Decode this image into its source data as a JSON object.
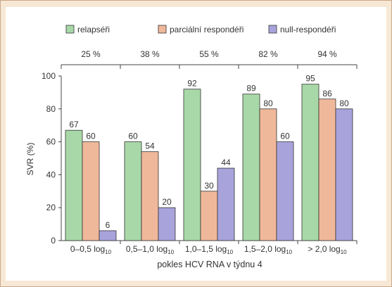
{
  "chart_data": {
    "type": "bar",
    "title": "",
    "xlabel_main": "pokles HCV RNA v týdnu 4",
    "ylabel": "SVR (%)",
    "ylim": [
      0,
      100
    ],
    "yticks": [
      0,
      20,
      40,
      60,
      80,
      100
    ],
    "grid": false,
    "legend_position": "top",
    "categories": [
      {
        "base": "0–0,5 log",
        "sub": "10"
      },
      {
        "base": "0,5–1,0 log",
        "sub": "10"
      },
      {
        "base": "1,0–1,5 log",
        "sub": "10"
      },
      {
        "base": "1,5–2,0 log",
        "sub": "10"
      },
      {
        "base": "> 2,0 log",
        "sub": "10"
      }
    ],
    "group_percentages": [
      "25 %",
      "38 %",
      "55 %",
      "82 %",
      "94 %"
    ],
    "series": [
      {
        "name": "relapséři",
        "color": "#a8d8a8",
        "values": [
          67,
          60,
          92,
          89,
          95
        ]
      },
      {
        "name": "parciální respondéři",
        "color": "#f0b89a",
        "values": [
          60,
          54,
          30,
          80,
          86
        ]
      },
      {
        "name": "null-respondéři",
        "color": "#a9a3dc",
        "values": [
          6,
          20,
          44,
          60,
          80
        ]
      }
    ]
  }
}
